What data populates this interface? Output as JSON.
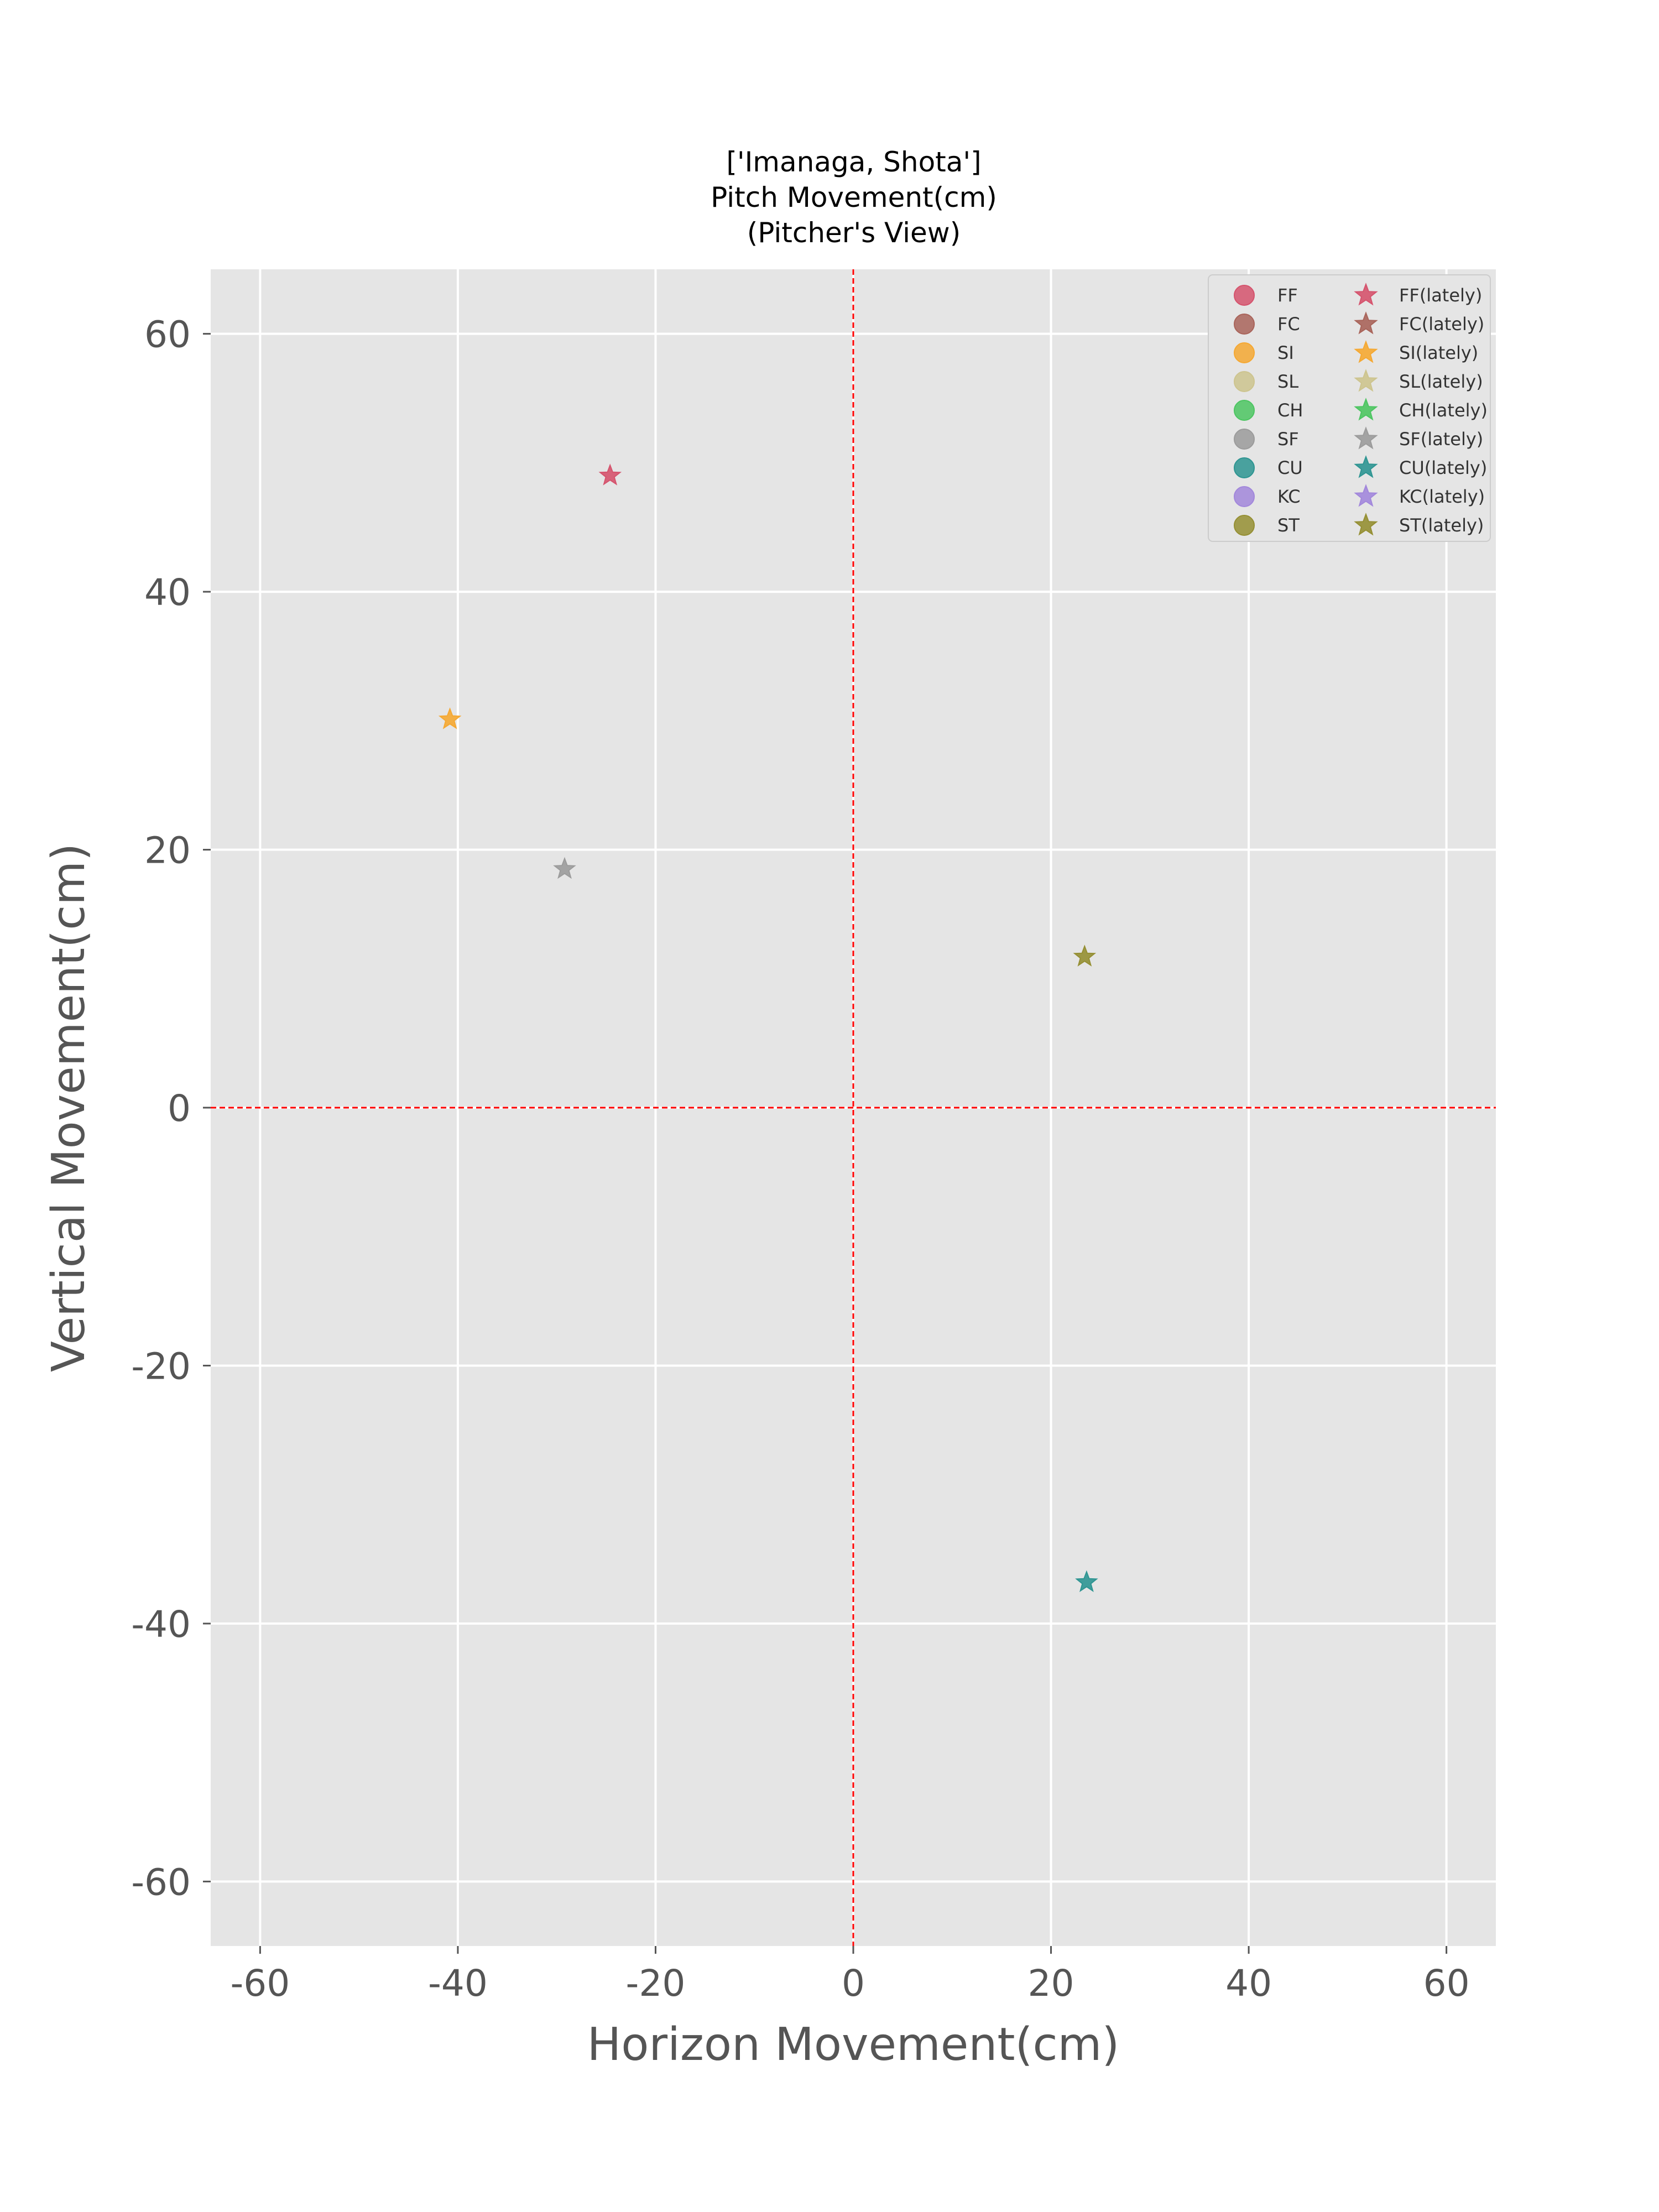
{
  "chart_data": {
    "type": "scatter",
    "title_lines": [
      "['Imanaga, Shota']",
      "Pitch Movement(cm)",
      "(Pitcher's View)"
    ],
    "xlabel": "Horizon Movement(cm)",
    "ylabel": "Vertical Movement(cm)",
    "xlim": [
      -65,
      65
    ],
    "ylim": [
      -65,
      65
    ],
    "xticks": [
      -60,
      -40,
      -20,
      0,
      20,
      40,
      60
    ],
    "yticks": [
      -60,
      -40,
      -20,
      0,
      20,
      40,
      60
    ],
    "grid": true,
    "reference_lines": {
      "x": 0,
      "y": 0,
      "color": "#ff0000",
      "style": "dashed"
    },
    "legend": {
      "placement": "top-right",
      "columns": [
        [
          {
            "label": "FF",
            "marker": "circle",
            "color": "#d5536d"
          },
          {
            "label": "FC",
            "marker": "circle",
            "color": "#a9645a"
          },
          {
            "label": "SI",
            "marker": "circle",
            "color": "#f5a832"
          },
          {
            "label": "SL",
            "marker": "circle",
            "color": "#cdc48e"
          },
          {
            "label": "CH",
            "marker": "circle",
            "color": "#4cc561"
          },
          {
            "label": "SF",
            "marker": "circle",
            "color": "#9b9b9b"
          },
          {
            "label": "CU",
            "marker": "circle",
            "color": "#2e9592"
          },
          {
            "label": "KC",
            "marker": "circle",
            "color": "#a287db"
          },
          {
            "label": "ST",
            "marker": "circle",
            "color": "#958f33"
          }
        ],
        [
          {
            "label": "FF(lately)",
            "marker": "star",
            "color": "#d5536d"
          },
          {
            "label": "FC(lately)",
            "marker": "star",
            "color": "#a9645a"
          },
          {
            "label": "SI(lately)",
            "marker": "star",
            "color": "#f5a832"
          },
          {
            "label": "SL(lately)",
            "marker": "star",
            "color": "#cdc48e"
          },
          {
            "label": "CH(lately)",
            "marker": "star",
            "color": "#4cc561"
          },
          {
            "label": "SF(lately)",
            "marker": "star",
            "color": "#9b9b9b"
          },
          {
            "label": "CU(lately)",
            "marker": "star",
            "color": "#2e9592"
          },
          {
            "label": "KC(lately)",
            "marker": "star",
            "color": "#a287db"
          },
          {
            "label": "ST(lately)",
            "marker": "star",
            "color": "#958f33"
          }
        ]
      ]
    },
    "series": [
      {
        "name": "FF(lately)",
        "marker": "star",
        "color": "#d5536d",
        "x": -24.6,
        "y": 49.0
      },
      {
        "name": "SI(lately)",
        "marker": "star",
        "color": "#f5a832",
        "x": -40.8,
        "y": 30.1
      },
      {
        "name": "SF(lately)",
        "marker": "star",
        "color": "#9b9b9b",
        "x": -29.2,
        "y": 18.5
      },
      {
        "name": "ST(lately)",
        "marker": "star",
        "color": "#958f33",
        "x": 23.4,
        "y": 11.7
      },
      {
        "name": "CU(lately)",
        "marker": "star",
        "color": "#2e9592",
        "x": 23.6,
        "y": -36.8
      }
    ]
  }
}
